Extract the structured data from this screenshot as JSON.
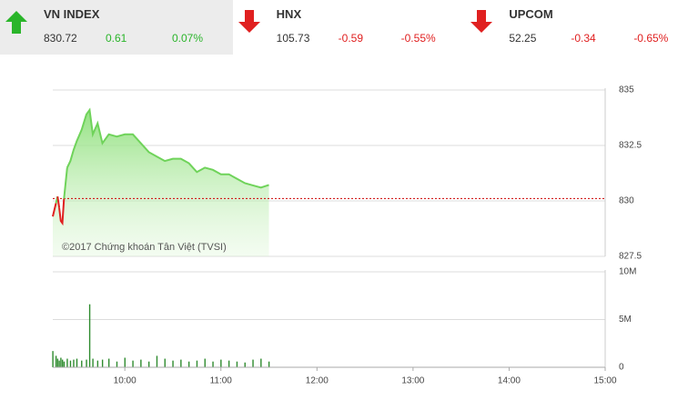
{
  "header": {
    "indices": [
      {
        "name": "VN INDEX",
        "value": "830.72",
        "change": "0.61",
        "percent": "0.07%",
        "direction": "up"
      },
      {
        "name": "HNX",
        "value": "105.73",
        "change": "-0.59",
        "percent": "-0.55%",
        "direction": "down"
      },
      {
        "name": "UPCOM",
        "value": "52.25",
        "change": "-0.34",
        "percent": "-0.65%",
        "direction": "down"
      }
    ]
  },
  "chart_data": [
    {
      "type": "area",
      "watermark": "©2017 Chứng khoán Tân Việt (TVSI)",
      "reference": 830.11,
      "color": "#6fd35a",
      "down_color": "#e02020",
      "x": [
        "09:15",
        "09:17",
        "09:18",
        "09:19",
        "09:20",
        "09:21",
        "09:22",
        "09:24",
        "09:26",
        "09:28",
        "09:30",
        "09:33",
        "09:36",
        "09:38",
        "09:40",
        "09:43",
        "09:46",
        "09:50",
        "09:55",
        "10:00",
        "10:05",
        "10:10",
        "10:15",
        "10:20",
        "10:25",
        "10:30",
        "10:35",
        "10:40",
        "10:45",
        "10:50",
        "10:55",
        "11:00",
        "11:05",
        "11:10",
        "11:15",
        "11:20",
        "11:25",
        "11:30"
      ],
      "values": [
        829.3,
        829.9,
        830.2,
        829.7,
        829.1,
        829.0,
        830.1,
        831.5,
        831.8,
        832.3,
        832.7,
        833.2,
        833.9,
        834.1,
        833.0,
        833.5,
        832.6,
        833.0,
        832.9,
        833.0,
        833.0,
        832.6,
        832.2,
        832.0,
        831.8,
        831.9,
        831.9,
        831.7,
        831.3,
        831.5,
        831.4,
        831.2,
        831.2,
        831.0,
        830.8,
        830.7,
        830.6,
        830.72
      ],
      "xlim": [
        "09:15",
        "15:00"
      ],
      "ylim": [
        827.5,
        835
      ],
      "yticks": [
        835,
        {
          "value": 832.5,
          "label": "832.5"
        },
        830,
        {
          "value": 827.5,
          "label": "827.5"
        }
      ],
      "grid": true
    },
    {
      "type": "bar",
      "color": "#2e8b2e",
      "x": [
        "09:15",
        "09:17",
        "09:18",
        "09:19",
        "09:20",
        "09:21",
        "09:22",
        "09:24",
        "09:26",
        "09:28",
        "09:30",
        "09:33",
        "09:36",
        "09:38",
        "09:40",
        "09:43",
        "09:46",
        "09:50",
        "09:55",
        "10:00",
        "10:05",
        "10:10",
        "10:15",
        "10:20",
        "10:25",
        "10:30",
        "10:35",
        "10:40",
        "10:45",
        "10:50",
        "10:55",
        "11:00",
        "11:05",
        "11:10",
        "11:15",
        "11:20",
        "11:25",
        "11:30"
      ],
      "values": [
        1700000,
        1200000,
        900000,
        700000,
        1000000,
        800000,
        600000,
        900000,
        700000,
        800000,
        900000,
        700000,
        800000,
        6600000,
        900000,
        700000,
        800000,
        900000,
        600000,
        1000000,
        700000,
        800000,
        600000,
        1200000,
        900000,
        700000,
        800000,
        600000,
        700000,
        900000,
        600000,
        800000,
        700000,
        600000,
        500000,
        800000,
        900000,
        600000
      ],
      "xlim": [
        "09:15",
        "15:00"
      ],
      "ylim": [
        0,
        10000000
      ],
      "yticks": [
        0,
        {
          "value": 5000000,
          "label": "5M"
        },
        {
          "value": 10000000,
          "label": "10M"
        }
      ],
      "xticks": [
        "10:00",
        "11:00",
        "12:00",
        "13:00",
        "14:00",
        "15:00"
      ],
      "grid": true
    }
  ]
}
